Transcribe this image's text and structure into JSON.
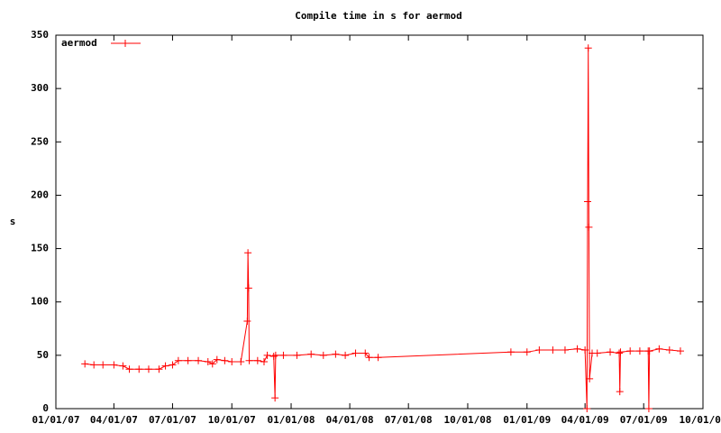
{
  "chart_data": {
    "type": "line",
    "title": "Compile time in s for aermod",
    "y_label": "s",
    "legend": "top-left",
    "x": [
      "2007-02-15",
      "2007-03-01",
      "2007-03-15",
      "2007-04-01",
      "2007-04-15",
      "2007-04-25",
      "2007-05-10",
      "2007-05-25",
      "2007-06-10",
      "2007-06-20",
      "2007-07-01",
      "2007-07-10",
      "2007-07-25",
      "2007-08-10",
      "2007-08-25",
      "2007-09-01",
      "2007-09-08",
      "2007-09-20",
      "2007-10-01",
      "2007-10-15",
      "2007-10-25",
      "2007-10-26",
      "2007-10-27",
      "2007-10-28",
      "2007-11-10",
      "2007-11-20",
      "2007-11-25",
      "2007-12-05",
      "2007-12-07",
      "2007-12-08",
      "2007-12-20",
      "2008-01-10",
      "2008-02-01",
      "2008-02-20",
      "2008-03-10",
      "2008-03-25",
      "2008-04-10",
      "2008-04-25",
      "2008-05-01",
      "2008-05-15",
      "2008-12-07",
      "2009-01-01",
      "2009-01-20",
      "2009-02-10",
      "2009-03-01",
      "2009-03-20",
      "2009-04-01",
      "2009-04-04",
      "2009-04-05",
      "2009-04-06",
      "2009-04-07",
      "2009-04-08",
      "2009-04-12",
      "2009-04-20",
      "2009-05-10",
      "2009-05-24",
      "2009-05-25",
      "2009-05-26",
      "2009-06-10",
      "2009-06-25",
      "2009-07-08",
      "2009-07-09",
      "2009-07-10",
      "2009-07-25",
      "2009-08-10",
      "2009-08-27"
    ],
    "series": [
      {
        "name": "aermod",
        "color": "#ff0000",
        "values": [
          42,
          41,
          41,
          41,
          40,
          37,
          37,
          37,
          37,
          40,
          41,
          45,
          45,
          45,
          44,
          42,
          46,
          45,
          44,
          44,
          82,
          146,
          113,
          45,
          45,
          44,
          50,
          49,
          10,
          50,
          50,
          50,
          51,
          50,
          51,
          50,
          52,
          52,
          48,
          48,
          53,
          53,
          55,
          55,
          55,
          56,
          55,
          0,
          194,
          338,
          170,
          28,
          52,
          52,
          53,
          52,
          16,
          53,
          54,
          54,
          54,
          0,
          54,
          56,
          55,
          54
        ]
      }
    ],
    "xlim": [
      "2007-01-01",
      "2009-10-01"
    ],
    "xticks": [
      {
        "value": "2007-01-01",
        "label": "01/01/07"
      },
      {
        "value": "2007-04-01",
        "label": "04/01/07"
      },
      {
        "value": "2007-07-01",
        "label": "07/01/07"
      },
      {
        "value": "2007-10-01",
        "label": "10/01/07"
      },
      {
        "value": "2008-01-01",
        "label": "01/01/08"
      },
      {
        "value": "2008-04-01",
        "label": "04/01/08"
      },
      {
        "value": "2008-07-01",
        "label": "07/01/08"
      },
      {
        "value": "2008-10-01",
        "label": "10/01/08"
      },
      {
        "value": "2009-01-01",
        "label": "01/01/09"
      },
      {
        "value": "2009-04-01",
        "label": "04/01/09"
      },
      {
        "value": "2009-07-01",
        "label": "07/01/09"
      },
      {
        "value": "2009-10-01",
        "label": "10/01/09"
      }
    ],
    "ylim": [
      0,
      350
    ],
    "yticks": [
      0,
      50,
      100,
      150,
      200,
      250,
      300,
      350
    ],
    "grid": false
  }
}
